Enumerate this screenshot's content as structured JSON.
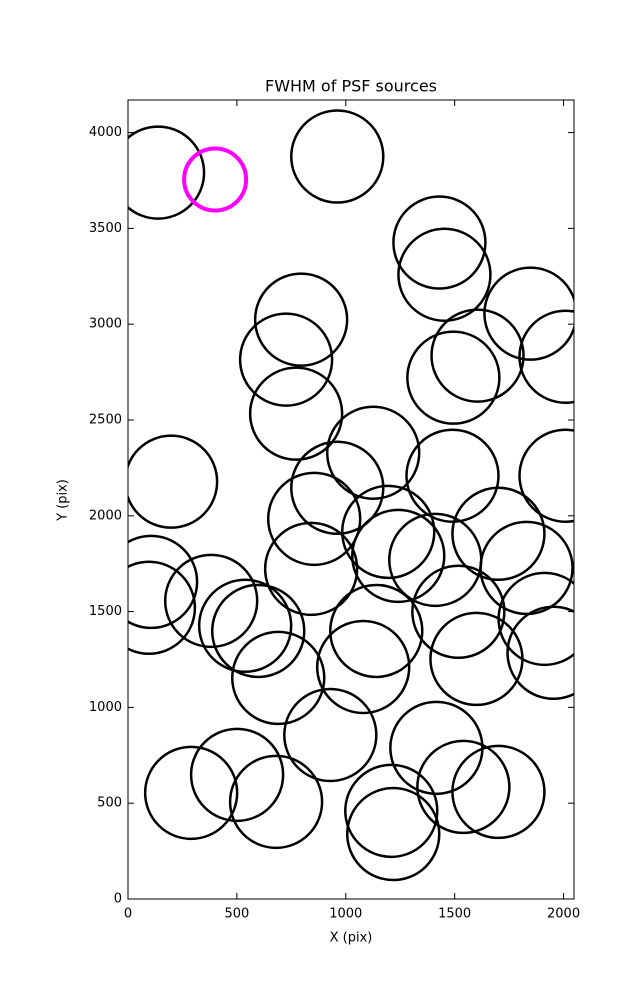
{
  "chart_data": {
    "type": "scatter",
    "title": "FWHM of PSF sources",
    "x_label": "X (pix)",
    "y_label": "Y (pix)",
    "xlim": [
      0,
      2048
    ],
    "ylim": [
      0,
      4170
    ],
    "xticks": [
      0,
      500,
      1000,
      1500,
      2000
    ],
    "yticks": [
      0,
      500,
      1000,
      1500,
      2000,
      2500,
      3000,
      3500,
      4000
    ],
    "series": [
      {
        "color": "#000000",
        "x": [
          138,
          961,
          1430,
          1453,
          1848,
          795,
          2009,
          1605,
          1494,
          726,
          772,
          1126,
          198,
          961,
          1490,
          2009,
          855,
          1195,
          1701,
          1241,
          1411,
          106,
          841,
          1830,
          96,
          382,
          1517,
          1913,
          598,
          1140,
          1954,
          1600,
          1080,
          690,
          929,
          1416,
          501,
          290,
          680,
          1540,
          1701,
          1209,
          1218,
          538
        ],
        "y": [
          3791,
          3875,
          3426,
          3258,
          3055,
          3024,
          2830,
          2836,
          2721,
          2815,
          2533,
          2329,
          2178,
          2146,
          2209,
          2209,
          1984,
          1916,
          1906,
          1791,
          1770,
          1655,
          1723,
          1728,
          1520,
          1556,
          1499,
          1462,
          1399,
          1399,
          1285,
          1253,
          1211,
          1154,
          856,
          789,
          648,
          554,
          507,
          585,
          559,
          460,
          339,
          1426
        ]
      },
      {
        "color": "#ff00ff",
        "x": [
          400
        ],
        "y": [
          3755
        ]
      }
    ]
  }
}
